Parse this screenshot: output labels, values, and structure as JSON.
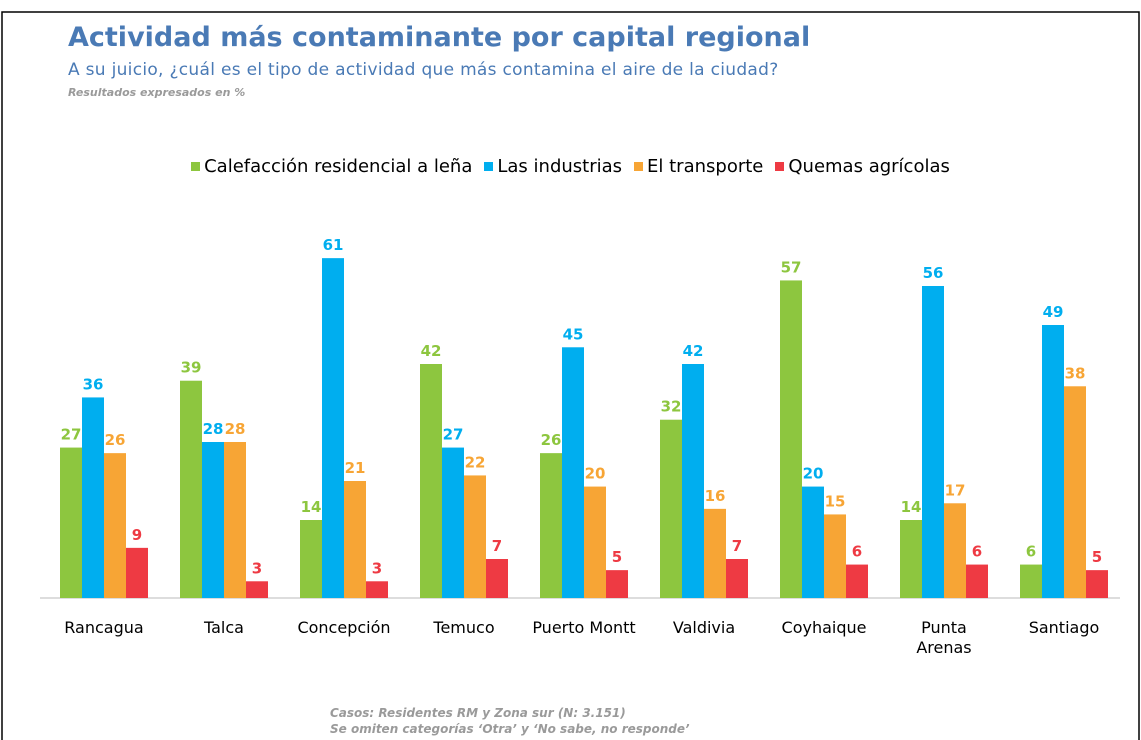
{
  "chart_data": {
    "type": "bar",
    "title": "Actividad más contaminante por capital regional",
    "subtitle": "A su juicio, ¿cuál es el tipo de actividad que más contamina el aire de la ciudad?",
    "note": "Resultados expresados en %",
    "footnotes": [
      "Casos: Residentes RM y Zona sur (N: 3.151)",
      "Se omiten categorías ‘Otra’ y ‘No sabe, no responde’"
    ],
    "categories": [
      "Rancagua",
      "Talca",
      "Concepción",
      "Temuco",
      "Puerto Montt",
      "Valdivia",
      "Coyhaique",
      "Punta Arenas",
      "Santiago"
    ],
    "series": [
      {
        "name": "Calefacción residencial a leña",
        "color": "#8dc63f",
        "values": [
          27,
          39,
          14,
          42,
          26,
          32,
          57,
          14,
          6
        ]
      },
      {
        "name": "Las industrias",
        "color": "#00aeef",
        "values": [
          36,
          28,
          61,
          27,
          45,
          42,
          20,
          56,
          49
        ]
      },
      {
        "name": "El transporte",
        "color": "#f7a535",
        "values": [
          26,
          28,
          21,
          22,
          20,
          16,
          15,
          17,
          38
        ]
      },
      {
        "name": "Quemas agrícolas",
        "color": "#ee3a43",
        "values": [
          9,
          3,
          3,
          7,
          5,
          7,
          6,
          6,
          5
        ]
      }
    ],
    "ylim": [
      0,
      70
    ],
    "legend": "top"
  }
}
